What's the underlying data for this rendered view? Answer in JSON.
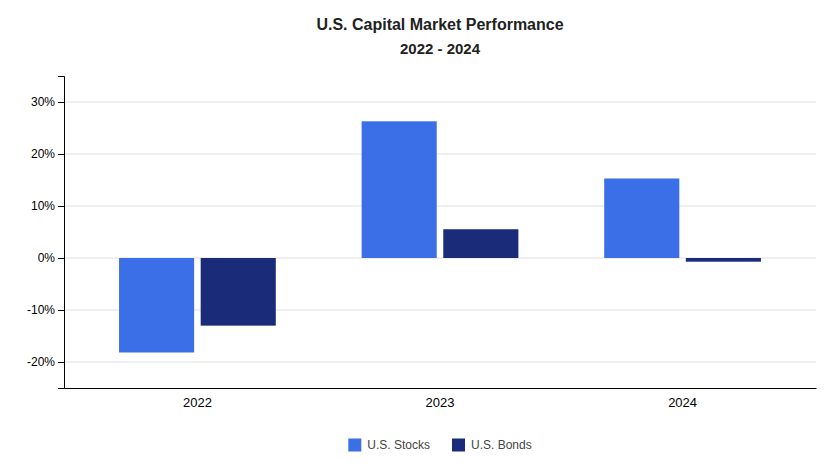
{
  "chart_data": {
    "type": "bar",
    "title": "U.S. Capital Market Performance",
    "subtitle": "2022 - 2024",
    "categories": [
      "2022",
      "2023",
      "2024"
    ],
    "series": [
      {
        "name": "U.S. Stocks",
        "color": "#3B6FE8",
        "values": [
          -18.17,
          26.29,
          15.29
        ]
      },
      {
        "name": "U.S. Bonds",
        "color": "#1A2B7A",
        "values": [
          -13.01,
          5.53,
          -0.71
        ]
      }
    ],
    "ylim": [
      -25,
      35
    ],
    "yticks": [
      {
        "value": -20,
        "label": "-20%"
      },
      {
        "value": -10,
        "label": "-10%"
      },
      {
        "value": 0,
        "label": "0%"
      },
      {
        "value": 10,
        "label": "10%"
      },
      {
        "value": 20,
        "label": "20%"
      },
      {
        "value": 30,
        "label": "30%"
      }
    ],
    "grid": true,
    "legend": "bottom"
  }
}
